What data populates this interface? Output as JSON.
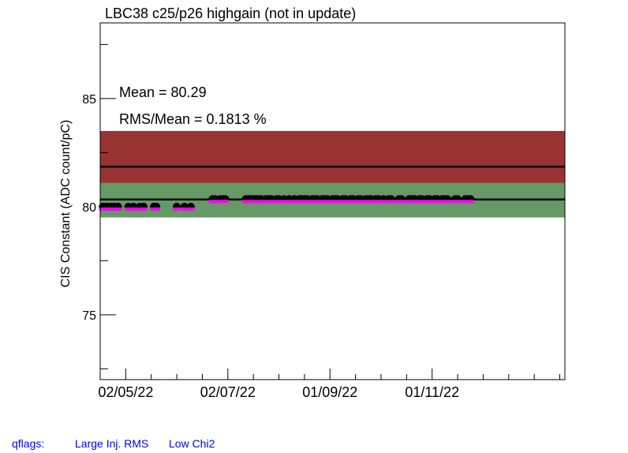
{
  "chart_data": {
    "type": "scatter",
    "title": "LBC38 c25/p26 highgain (not in update)",
    "ylabel": "CIS Constant (ADC count/pC)",
    "xlabel": "",
    "ylim": [
      72.0,
      88.5
    ],
    "xlim": [
      0,
      182
    ],
    "grid": false,
    "y_ticks": [
      {
        "value": 75,
        "label": "75"
      },
      {
        "value": 80,
        "label": "80"
      },
      {
        "value": 85,
        "label": "85"
      }
    ],
    "x_ticks": [
      {
        "value": 10,
        "label": "02/05/22"
      },
      {
        "value": 50,
        "label": "02/07/22"
      },
      {
        "value": 90,
        "label": "01/09/22"
      },
      {
        "value": 130,
        "label": "01/11/22"
      }
    ],
    "stats": {
      "mean_label": "Mean = 80.29",
      "rms_label": "RMS/Mean = 0.1813 %"
    },
    "bands": [
      {
        "low": 80.3,
        "high": 83.5,
        "color": "#993333"
      },
      {
        "low": 79.5,
        "high": 81.1,
        "color": "#669966"
      }
    ],
    "lines": [
      {
        "value": 81.85,
        "color": "#000000"
      },
      {
        "value": 80.33,
        "color": "#000000"
      }
    ],
    "series": [
      {
        "color": "#000000",
        "marker_color": "#ff00ff",
        "x": [
          1,
          2.5,
          4,
          5.5,
          7,
          11,
          13,
          15.5,
          17,
          21,
          22,
          30,
          33,
          35.5,
          44,
          45,
          47,
          48,
          49,
          57,
          58,
          59,
          60,
          61,
          62,
          63,
          65,
          66,
          67,
          69,
          70,
          72,
          74,
          76,
          78,
          79,
          80,
          81,
          83,
          84,
          85,
          87,
          88,
          89,
          91,
          92,
          93,
          95,
          96,
          98,
          99,
          101,
          102,
          104,
          105,
          106,
          108,
          109,
          111,
          113,
          114,
          117,
          118,
          121,
          122,
          123,
          125,
          126,
          128,
          129,
          131,
          132,
          134,
          135,
          136,
          139,
          140,
          143,
          144,
          145
        ],
        "y": [
          80.0,
          80.0,
          80.0,
          80.0,
          80.0,
          80.0,
          80.0,
          80.0,
          80.0,
          80.0,
          80.0,
          80.0,
          80.0,
          80.0,
          80.35,
          80.35,
          80.35,
          80.35,
          80.35,
          80.35,
          80.35,
          80.35,
          80.35,
          80.35,
          80.35,
          80.35,
          80.35,
          80.35,
          80.35,
          80.35,
          80.35,
          80.35,
          80.35,
          80.35,
          80.35,
          80.35,
          80.35,
          80.35,
          80.35,
          80.35,
          80.35,
          80.35,
          80.35,
          80.35,
          80.35,
          80.35,
          80.35,
          80.35,
          80.35,
          80.35,
          80.35,
          80.35,
          80.35,
          80.35,
          80.35,
          80.35,
          80.35,
          80.35,
          80.35,
          80.35,
          80.35,
          80.35,
          80.35,
          80.35,
          80.35,
          80.35,
          80.35,
          80.35,
          80.35,
          80.35,
          80.35,
          80.35,
          80.35,
          80.35,
          80.35,
          80.35,
          80.35,
          80.35,
          80.35,
          80.35
        ]
      }
    ]
  },
  "footer": {
    "qflags_label": "qflags:",
    "flag1": "Large Inj. RMS",
    "flag2": "Low Chi2"
  }
}
